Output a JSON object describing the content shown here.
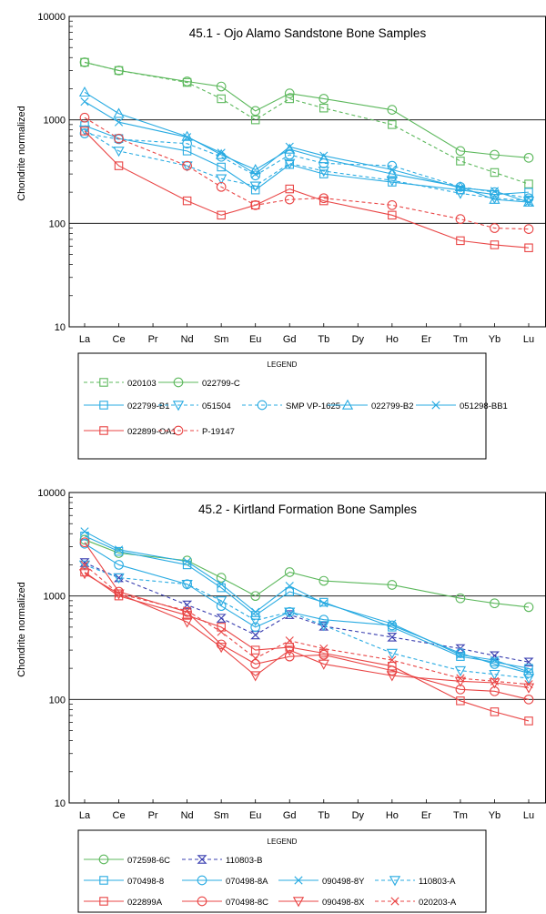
{
  "chart_data": [
    {
      "type": "line",
      "title": "45.1 - Ojo Alamo Sandstone Bone Samples",
      "ylabel": "Chondrite normalized",
      "yscale": "log",
      "ylim": [
        10,
        10000
      ],
      "yticklabels": [
        "10000",
        "1000",
        "100",
        "10"
      ],
      "categories": [
        "La",
        "Ce",
        "Pr",
        "Nd",
        "Sm",
        "Eu",
        "Gd",
        "Tb",
        "Dy",
        "Ho",
        "Er",
        "Tm",
        "Yb",
        "Lu"
      ],
      "legend_title": "LEGEND",
      "series": [
        {
          "name": "020103",
          "color": "#5cb85c",
          "marker": "square",
          "dash": true,
          "points": [
            [
              "La",
              3600
            ],
            [
              "Ce",
              3000
            ],
            [
              "Nd",
              2300
            ],
            [
              "Sm",
              1600
            ],
            [
              "Eu",
              1000
            ],
            [
              "Gd",
              1600
            ],
            [
              "Tb",
              1300
            ],
            [
              "Ho",
              900
            ],
            [
              "Tm",
              400
            ],
            [
              "Yb",
              310
            ],
            [
              "Lu",
              240
            ]
          ]
        },
        {
          "name": "022799-C",
          "color": "#5cb85c",
          "marker": "circle",
          "dash": false,
          "points": [
            [
              "La",
              3600
            ],
            [
              "Ce",
              3000
            ],
            [
              "Nd",
              2350
            ],
            [
              "Sm",
              2100
            ],
            [
              "Eu",
              1220
            ],
            [
              "Gd",
              1800
            ],
            [
              "Tb",
              1600
            ],
            [
              "Ho",
              1250
            ],
            [
              "Tm",
              500
            ],
            [
              "Yb",
              460
            ],
            [
              "Lu",
              430
            ]
          ]
        },
        {
          "name": "022799-B1",
          "color": "#29abe2",
          "marker": "square",
          "dash": false,
          "points": [
            [
              "La",
              880
            ],
            [
              "Ce",
              660
            ],
            [
              "Nd",
              500
            ],
            [
              "Sm",
              350
            ],
            [
              "Eu",
              210
            ],
            [
              "Gd",
              370
            ],
            [
              "Tb",
              300
            ],
            [
              "Ho",
              250
            ],
            [
              "Tm",
              210
            ],
            [
              "Yb",
              190
            ],
            [
              "Lu",
              200
            ]
          ]
        },
        {
          "name": "051504",
          "color": "#29abe2",
          "marker": "triangle-down",
          "dash": true,
          "points": [
            [
              "La",
              800
            ],
            [
              "Ce",
              500
            ],
            [
              "Nd",
              360
            ],
            [
              "Sm",
              270
            ],
            [
              "Eu",
              230
            ],
            [
              "Gd",
              380
            ],
            [
              "Tb",
              320
            ],
            [
              "Ho",
              260
            ],
            [
              "Tm",
              195
            ],
            [
              "Yb",
              175
            ],
            [
              "Lu",
              165
            ]
          ]
        },
        {
          "name": "SMP VP-1625",
          "color": "#29abe2",
          "marker": "circle",
          "dash": true,
          "points": [
            [
              "La",
              740
            ],
            [
              "Ce",
              650
            ],
            [
              "Nd",
              590
            ],
            [
              "Sm",
              440
            ],
            [
              "Eu",
              290
            ],
            [
              "Gd",
              460
            ],
            [
              "Tb",
              380
            ],
            [
              "Ho",
              360
            ],
            [
              "Tm",
              225
            ],
            [
              "Yb",
              200
            ],
            [
              "Lu",
              175
            ]
          ]
        },
        {
          "name": "022799-B2",
          "color": "#29abe2",
          "marker": "triangle-up",
          "dash": false,
          "points": [
            [
              "La",
              1850
            ],
            [
              "Ce",
              1150
            ],
            [
              "Nd",
              690
            ],
            [
              "Sm",
              460
            ],
            [
              "Eu",
              330
            ],
            [
              "Gd",
              520
            ],
            [
              "Tb",
              420
            ],
            [
              "Ho",
              300
            ],
            [
              "Tm",
              225
            ],
            [
              "Yb",
              170
            ],
            [
              "Lu",
              160
            ]
          ]
        },
        {
          "name": "051298-BB1",
          "color": "#29abe2",
          "marker": "x",
          "dash": false,
          "points": [
            [
              "La",
              1500
            ],
            [
              "Ce",
              950
            ],
            [
              "Nd",
              680
            ],
            [
              "Sm",
              480
            ],
            [
              "Eu",
              300
            ],
            [
              "Gd",
              550
            ],
            [
              "Tb",
              450
            ],
            [
              "Ho",
              330
            ],
            [
              "Tm",
              220
            ],
            [
              "Yb",
              205
            ],
            [
              "Lu",
              160
            ]
          ]
        },
        {
          "name": "022899-OA1",
          "color": "#e94545",
          "marker": "square",
          "dash": false,
          "points": [
            [
              "La",
              780
            ],
            [
              "Ce",
              360
            ],
            [
              "Nd",
              165
            ],
            [
              "Sm",
              120
            ],
            [
              "Eu",
              150
            ],
            [
              "Gd",
              215
            ],
            [
              "Tb",
              165
            ],
            [
              "Ho",
              120
            ],
            [
              "Tm",
              68
            ],
            [
              "Yb",
              62
            ],
            [
              "Lu",
              58
            ]
          ]
        },
        {
          "name": "P-19147",
          "color": "#e94545",
          "marker": "circle",
          "dash": true,
          "points": [
            [
              "La",
              1050
            ],
            [
              "Ce",
              660
            ],
            [
              "Nd",
              360
            ],
            [
              "Sm",
              225
            ],
            [
              "Eu",
              150
            ],
            [
              "Gd",
              170
            ],
            [
              "Tb",
              175
            ],
            [
              "Ho",
              150
            ],
            [
              "Tm",
              110
            ],
            [
              "Yb",
              90
            ],
            [
              "Lu",
              88
            ]
          ]
        }
      ]
    },
    {
      "type": "line",
      "title": "45.2 - Kirtland Formation Bone Samples",
      "ylabel": "Chondrite normalized",
      "yscale": "log",
      "ylim": [
        10,
        10000
      ],
      "yticklabels": [
        "10000",
        "1000",
        "100",
        "10"
      ],
      "categories": [
        "La",
        "Ce",
        "Pr",
        "Nd",
        "Sm",
        "Eu",
        "Gd",
        "Tb",
        "Dy",
        "Ho",
        "Er",
        "Tm",
        "Yb",
        "Lu"
      ],
      "legend_title": "LEGEND",
      "series": [
        {
          "name": "072598-6C",
          "color": "#5cb85c",
          "marker": "circle",
          "dash": false,
          "points": [
            [
              "La",
              3500
            ],
            [
              "Ce",
              2600
            ],
            [
              "Nd",
              2200
            ],
            [
              "Sm",
              1500
            ],
            [
              "Eu",
              1000
            ],
            [
              "Gd",
              1700
            ],
            [
              "Tb",
              1400
            ],
            [
              "Ho",
              1280
            ],
            [
              "Tm",
              950
            ],
            [
              "Yb",
              850
            ],
            [
              "Lu",
              780
            ]
          ]
        },
        {
          "name": "110803-B",
          "color": "#3a3fb0",
          "marker": "hourglass",
          "dash": true,
          "points": [
            [
              "La",
              2100
            ],
            [
              "Ce",
              1500
            ],
            [
              "Nd",
              820
            ],
            [
              "Sm",
              610
            ],
            [
              "Eu",
              420
            ],
            [
              "Gd",
              660
            ],
            [
              "Tb",
              510
            ],
            [
              "Ho",
              400
            ],
            [
              "Tm",
              310
            ],
            [
              "Yb",
              265
            ],
            [
              "Lu",
              230
            ]
          ]
        },
        {
          "name": "070498-8",
          "color": "#29abe2",
          "marker": "square",
          "dash": false,
          "points": [
            [
              "La",
              3800
            ],
            [
              "Ce",
              2700
            ],
            [
              "Nd",
              2000
            ],
            [
              "Sm",
              1200
            ],
            [
              "Eu",
              650
            ],
            [
              "Gd",
              1100
            ],
            [
              "Tb",
              870
            ],
            [
              "Ho",
              500
            ],
            [
              "Tm",
              260
            ],
            [
              "Yb",
              230
            ],
            [
              "Lu",
              200
            ]
          ]
        },
        {
          "name": "070498-8A",
          "color": "#29abe2",
          "marker": "circle",
          "dash": false,
          "points": [
            [
              "La",
              3200
            ],
            [
              "Ce",
              2000
            ],
            [
              "Nd",
              1300
            ],
            [
              "Sm",
              800
            ],
            [
              "Eu",
              500
            ],
            [
              "Gd",
              700
            ],
            [
              "Tb",
              590
            ],
            [
              "Ho",
              520
            ],
            [
              "Tm",
              280
            ],
            [
              "Yb",
              220
            ],
            [
              "Lu",
              180
            ]
          ]
        },
        {
          "name": "090498-8Y",
          "color": "#29abe2",
          "marker": "x",
          "dash": false,
          "points": [
            [
              "La",
              4200
            ],
            [
              "Ce",
              2800
            ],
            [
              "Nd",
              2150
            ],
            [
              "Sm",
              1300
            ],
            [
              "Eu",
              700
            ],
            [
              "Gd",
              1250
            ],
            [
              "Tb",
              850
            ],
            [
              "Ho",
              540
            ],
            [
              "Tm",
              270
            ],
            [
              "Yb",
              240
            ],
            [
              "Lu",
              185
            ]
          ]
        },
        {
          "name": "110803-A",
          "color": "#29abe2",
          "marker": "triangle-down",
          "dash": true,
          "points": [
            [
              "La",
              2000
            ],
            [
              "Ce",
              1500
            ],
            [
              "Nd",
              1300
            ],
            [
              "Sm",
              900
            ],
            [
              "Eu",
              580
            ],
            [
              "Gd",
              700
            ],
            [
              "Tb",
              520
            ],
            [
              "Ho",
              280
            ],
            [
              "Tm",
              190
            ],
            [
              "Yb",
              175
            ],
            [
              "Lu",
              160
            ]
          ]
        },
        {
          "name": "022899A",
          "color": "#e94545",
          "marker": "square",
          "dash": false,
          "points": [
            [
              "La",
              1700
            ],
            [
              "Ce",
              1000
            ],
            [
              "Nd",
              650
            ],
            [
              "Sm",
              500
            ],
            [
              "Eu",
              300
            ],
            [
              "Gd",
              320
            ],
            [
              "Tb",
              280
            ],
            [
              "Ho",
              210
            ],
            [
              "Tm",
              97
            ],
            [
              "Yb",
              76
            ],
            [
              "Lu",
              62
            ]
          ]
        },
        {
          "name": "070498-8C",
          "color": "#e94545",
          "marker": "circle",
          "dash": false,
          "points": [
            [
              "La",
              3300
            ],
            [
              "Ce",
              1100
            ],
            [
              "Nd",
              700
            ],
            [
              "Sm",
              340
            ],
            [
              "Eu",
              220
            ],
            [
              "Gd",
              260
            ],
            [
              "Tb",
              270
            ],
            [
              "Ho",
              190
            ],
            [
              "Tm",
              125
            ],
            [
              "Yb",
              120
            ],
            [
              "Lu",
              100
            ]
          ]
        },
        {
          "name": "090498-8X",
          "color": "#e94545",
          "marker": "triangle-down",
          "dash": false,
          "points": [
            [
              "La",
              1650
            ],
            [
              "Ce",
              1050
            ],
            [
              "Nd",
              560
            ],
            [
              "Sm",
              320
            ],
            [
              "Eu",
              170
            ],
            [
              "Gd",
              300
            ],
            [
              "Tb",
              220
            ],
            [
              "Ho",
              170
            ],
            [
              "Tm",
              150
            ],
            [
              "Yb",
              145
            ],
            [
              "Lu",
              130
            ]
          ]
        },
        {
          "name": "020203-A",
          "color": "#e94545",
          "marker": "x",
          "dash": true,
          "points": [
            [
              "La",
              2000
            ],
            [
              "Ce",
              1050
            ],
            [
              "Nd",
              720
            ],
            [
              "Sm",
              450
            ],
            [
              "Eu",
              250
            ],
            [
              "Gd",
              370
            ],
            [
              "Tb",
              310
            ],
            [
              "Ho",
              240
            ],
            [
              "Tm",
              160
            ],
            [
              "Yb",
              150
            ],
            [
              "Lu",
              140
            ]
          ]
        }
      ]
    }
  ]
}
